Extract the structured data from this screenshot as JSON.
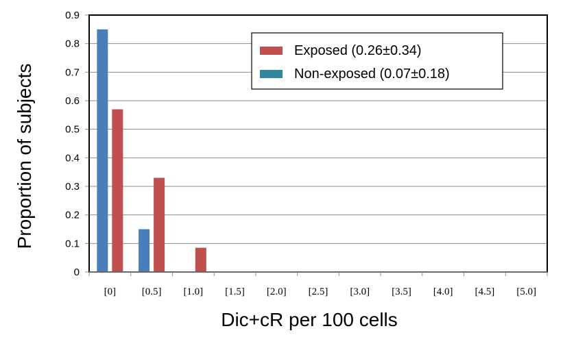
{
  "chart_data": {
    "type": "bar",
    "xlabel": "Dic+cR per 100 cells",
    "ylabel": "Proportion of subjects",
    "ylim": [
      0,
      0.9
    ],
    "yticks": [
      "0",
      "0.1",
      "0.2",
      "0.3",
      "0.4",
      "0.5",
      "0.6",
      "0.7",
      "0.8",
      "0.9"
    ],
    "categories": [
      "[0]",
      "[0.5]",
      "[1.0]",
      "[1.5]",
      "[2.0]",
      "[2.5]",
      "[3.0]",
      "[3.5]",
      "[4.0]",
      "[4.5]",
      "[5.0]"
    ],
    "series": [
      {
        "name": "Non-exposed (0.07±0.18)",
        "color": "#4a7ebb",
        "legend_color": "#31859c",
        "values": [
          0.85,
          0.15,
          0,
          0,
          0,
          0,
          0,
          0,
          0,
          0,
          0
        ]
      },
      {
        "name": "Exposed (0.26±0.34)",
        "color": "#c0504d",
        "legend_color": "#c0504d",
        "values": [
          0.57,
          0.33,
          0.085,
          0,
          0,
          0,
          0,
          0,
          0,
          0,
          0
        ]
      }
    ],
    "legend_order": [
      1,
      0
    ],
    "grid": true,
    "legend_position": "top-right"
  }
}
